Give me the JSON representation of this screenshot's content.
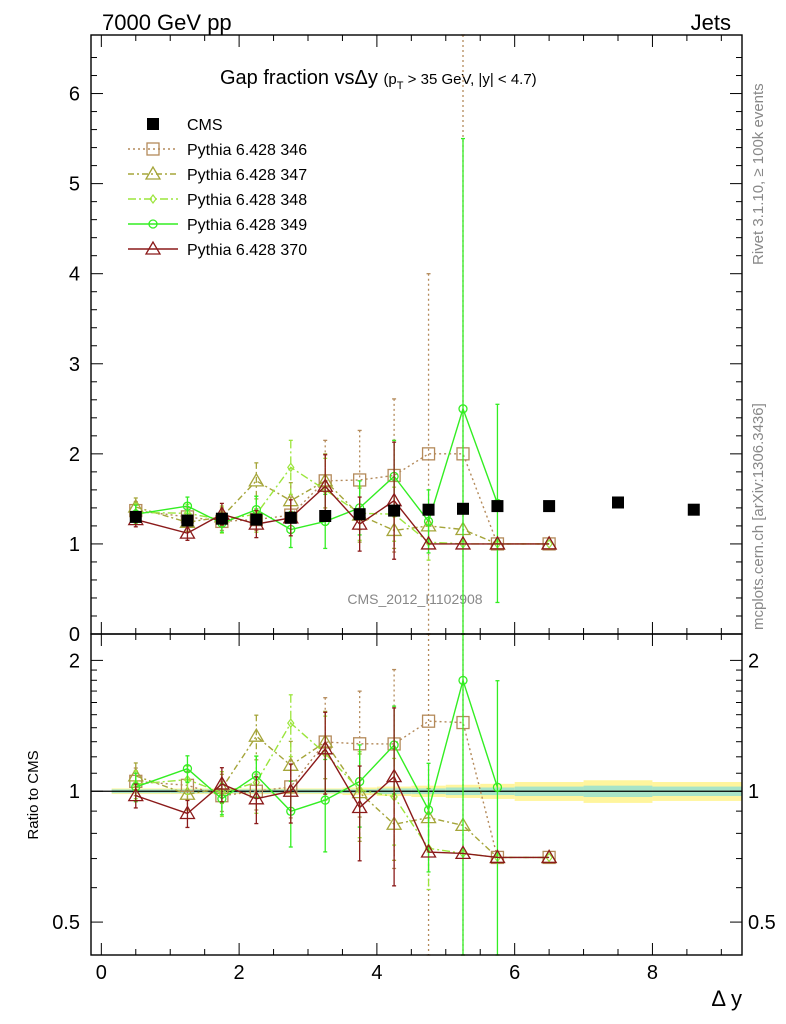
{
  "header": {
    "left": "7000 GeV pp",
    "right": "Jets"
  },
  "side": {
    "rivet": "Rivet 3.1.10, ≥ 100k events",
    "mcplots": "mcplots.cern.ch [arXiv:1306.3436]"
  },
  "chart_data": {
    "type": "line",
    "title": {
      "main": "Gap fraction vsΔy",
      "cut_pre": "(p",
      "cut_sub": "T",
      "cut_post": " > 35 GeV, |y| < 4.7)"
    },
    "analysis_label": "CMS_2012_I1102908",
    "xlabel": "Δ y",
    "ratio_ylabel": "Ratio to CMS",
    "xlim": [
      -0.15,
      9.3
    ],
    "ylim_main": [
      0,
      6.65
    ],
    "ylim_ratio": [
      0.42,
      2.3
    ],
    "ratio_scale": "log",
    "x_ticks": [
      "0",
      "2",
      "4",
      "6",
      "8"
    ],
    "main_y_ticks": [
      "0",
      "1",
      "2",
      "3",
      "4",
      "5",
      "6"
    ],
    "ratio_y_ticks": [
      "0.5",
      "1",
      "2"
    ],
    "legend_position": "top-left",
    "cms": {
      "name": "CMS",
      "x": [
        0.5,
        1.25,
        1.75,
        2.25,
        2.75,
        3.25,
        3.75,
        4.25,
        4.75,
        5.25,
        5.75,
        6.5,
        7.5,
        8.6
      ],
      "y": [
        1.3,
        1.26,
        1.28,
        1.27,
        1.29,
        1.31,
        1.33,
        1.37,
        1.38,
        1.39,
        1.42,
        1.42,
        1.46,
        1.38
      ],
      "band_xlo": [
        0.15,
        1.0,
        1.5,
        2.0,
        2.5,
        3.0,
        3.5,
        4.0,
        4.5,
        5.0,
        5.5,
        6.0,
        7.0,
        8.0
      ],
      "band_xhi": [
        1.0,
        1.5,
        2.0,
        2.5,
        3.0,
        3.5,
        4.0,
        4.5,
        5.0,
        5.5,
        6.0,
        7.0,
        8.0,
        9.3
      ],
      "band_inner": [
        0.01,
        0.01,
        0.01,
        0.01,
        0.01,
        0.01,
        0.01,
        0.015,
        0.015,
        0.02,
        0.02,
        0.025,
        0.03,
        0.025
      ],
      "band_outer": [
        0.015,
        0.015,
        0.015,
        0.015,
        0.015,
        0.015,
        0.02,
        0.025,
        0.03,
        0.035,
        0.04,
        0.05,
        0.06,
        0.05
      ],
      "color": "#000000"
    },
    "series": [
      {
        "name": "Pythia 6.428 346",
        "color": "#b48a5a",
        "marker": "square",
        "dash": "2,3",
        "x": [
          0.5,
          1.25,
          1.75,
          2.25,
          2.75,
          3.25,
          3.75,
          4.25,
          4.75,
          5.25,
          5.75,
          6.5
        ],
        "y": [
          1.37,
          1.3,
          1.25,
          1.27,
          1.32,
          1.7,
          1.71,
          1.76,
          2.0,
          2.0,
          1.0,
          1.0
        ],
        "err": [
          0.1,
          0.1,
          0.1,
          0.12,
          0.2,
          0.45,
          0.55,
          0.85,
          2.0,
          4.7,
          0,
          0
        ]
      },
      {
        "name": "Pythia 6.428 347",
        "color": "#a5a53a",
        "marker": "triangle",
        "dash": "6,3,2,3",
        "x": [
          0.5,
          1.25,
          1.75,
          2.25,
          2.75,
          3.25,
          3.75,
          4.25,
          4.75,
          5.25,
          5.75,
          6.5
        ],
        "y": [
          1.41,
          1.24,
          1.3,
          1.7,
          1.48,
          1.7,
          1.32,
          1.15,
          1.2,
          1.16,
          1.0,
          1.0
        ],
        "err": [
          0.1,
          0.1,
          0.1,
          0.2,
          0.2,
          0.3,
          0.3,
          0.2,
          0.2,
          0,
          0,
          0
        ]
      },
      {
        "name": "Pythia 6.428 348",
        "color": "#9be53c",
        "marker": "diamond",
        "dash": "8,3,2,3",
        "x": [
          0.5,
          1.25,
          1.75,
          2.25,
          2.75,
          3.25,
          3.75,
          4.25,
          4.75,
          5.25,
          5.75,
          6.5
        ],
        "y": [
          1.35,
          1.34,
          1.27,
          1.33,
          1.85,
          1.6,
          1.34,
          1.33,
          1.02,
          1.0,
          1.0,
          1.0
        ],
        "err": [
          0.1,
          0.1,
          0.15,
          0.2,
          0.3,
          0.35,
          0.3,
          0.3,
          0.2,
          0,
          0,
          0
        ]
      },
      {
        "name": "Pythia 6.428 349",
        "color": "#33ee22",
        "marker": "circle",
        "dash": "",
        "x": [
          0.5,
          1.25,
          1.75,
          2.25,
          2.75,
          3.25,
          3.75,
          4.25,
          4.75,
          5.25,
          5.75
        ],
        "y": [
          1.33,
          1.42,
          1.23,
          1.38,
          1.16,
          1.25,
          1.4,
          1.75,
          1.25,
          2.5,
          1.45
        ],
        "err": [
          0.1,
          0.1,
          0.1,
          0.15,
          0.2,
          0.3,
          0.3,
          0.4,
          0.35,
          3.0,
          1.1
        ]
      },
      {
        "name": "Pythia 6.428 370",
        "color": "#8b1a1a",
        "marker": "triangle",
        "dash": "",
        "x": [
          0.5,
          1.25,
          1.75,
          2.25,
          2.75,
          3.25,
          3.75,
          4.25,
          4.75,
          5.25,
          5.75,
          6.5
        ],
        "y": [
          1.27,
          1.12,
          1.33,
          1.22,
          1.29,
          1.64,
          1.22,
          1.48,
          1.0,
          1.0,
          1.0,
          1.0
        ],
        "err": [
          0.08,
          0.08,
          0.12,
          0.15,
          0.2,
          0.35,
          0.3,
          0.65,
          0,
          0,
          0,
          0
        ]
      }
    ]
  }
}
